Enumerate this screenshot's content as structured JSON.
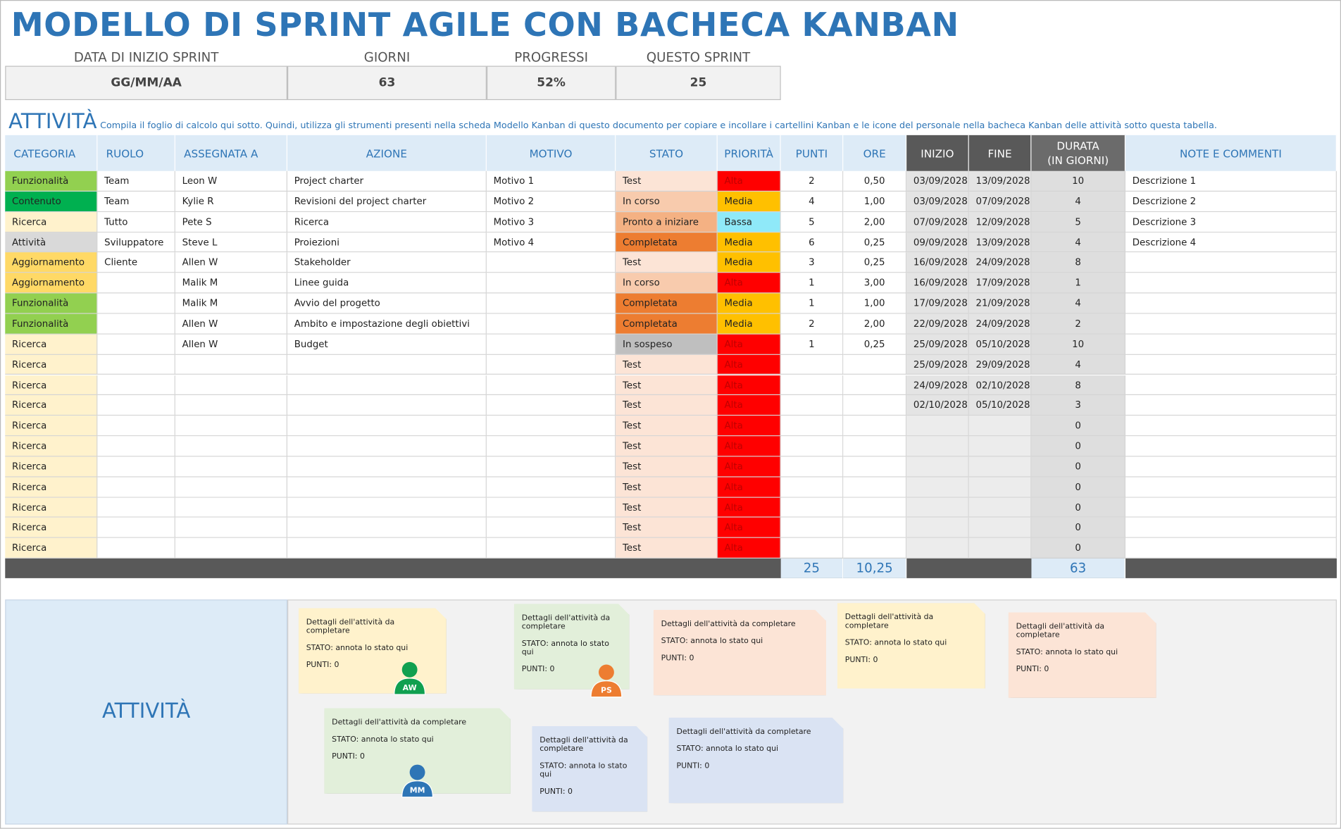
{
  "header": {
    "title": "MODELLO DI SPRINT AGILE CON BACHECA KANBAN"
  },
  "summary": {
    "labels": [
      "DATA DI INIZIO SPRINT",
      "GIORNI",
      "PROGRESSI",
      "QUESTO SPRINT"
    ],
    "values": [
      "GG/MM/AA",
      63,
      "52%",
      25
    ]
  },
  "activities": {
    "title": "ATTIVITÀ",
    "instructions": "Compila il foglio di calcolo qui sotto. Quindi, utilizza gli strumenti presenti nella scheda Modello Kanban di questo documento per copiare e incollare i cartellini Kanban e le icone del personale nella bacheca Kanban delle attività sotto questa tabella."
  },
  "table": {
    "headers": [
      "CATEGORIA",
      "RUOLO",
      "ASSEGNATA A",
      "AZIONE",
      "MOTIVO",
      "STATO",
      "PRIORITÀ",
      "PUNTI",
      "ORE",
      "INIZIO",
      "FINE",
      "DURATA\n(IN GIORNI)",
      "NOTE E COMMENTI"
    ],
    "rows": [
      [
        "Funzionalità",
        "Team",
        "Leon W",
        "Project charter",
        "Motivo 1",
        "Test",
        "Alta",
        2,
        "0,50",
        "03/09/2028",
        "13/09/2028",
        10,
        "Descrizione 1"
      ],
      [
        "Contenuto",
        "Team",
        "Kylie R",
        "Revisioni del project charter",
        "Motivo 2",
        "In corso",
        "Media",
        4,
        "1,00",
        "03/09/2028",
        "07/09/2028",
        4,
        "Descrizione 2"
      ],
      [
        "Ricerca",
        "Tutto",
        "Pete S",
        "Ricerca",
        "Motivo 3",
        "Pronto a iniziare",
        "Bassa",
        5,
        "2,00",
        "07/09/2028",
        "12/09/2028",
        5,
        "Descrizione 3"
      ],
      [
        "Attività",
        "Sviluppatore",
        "Steve L",
        "Proiezioni",
        "Motivo 4",
        "Completata",
        "Media",
        6,
        "0,25",
        "09/09/2028",
        "13/09/2028",
        4,
        "Descrizione 4"
      ],
      [
        "Aggiornamento",
        "Cliente",
        "Allen W",
        "Stakeholder",
        null,
        "Test",
        "Media",
        3,
        "0,25",
        "16/09/2028",
        "24/09/2028",
        8,
        null
      ],
      [
        "Aggiornamento",
        null,
        "Malik M",
        "Linee guida",
        null,
        "In corso",
        "Alta",
        1,
        "3,00",
        "16/09/2028",
        "17/09/2028",
        1,
        null
      ],
      [
        "Funzionalità",
        null,
        "Malik M",
        "Avvio del progetto",
        null,
        "Completata",
        "Media",
        1,
        "1,00",
        "17/09/2028",
        "21/09/2028",
        4,
        null
      ],
      [
        "Funzionalità",
        null,
        "Allen W",
        "Ambito e impostazione degli obiettivi",
        null,
        "Completata",
        "Media",
        2,
        "2,00",
        "22/09/2028",
        "24/09/2028",
        2,
        null
      ],
      [
        "Ricerca",
        null,
        "Allen W",
        "Budget",
        null,
        "In sospeso",
        "Alta",
        1,
        "0,25",
        "25/09/2028",
        "05/10/2028",
        10,
        null
      ],
      [
        "Ricerca",
        null,
        null,
        null,
        null,
        "Test",
        "Alta",
        null,
        null,
        "25/09/2028",
        "29/09/2028",
        4,
        null
      ],
      [
        "Ricerca",
        null,
        null,
        null,
        null,
        "Test",
        "Alta",
        null,
        null,
        "24/09/2028",
        "02/10/2028",
        8,
        null
      ],
      [
        "Ricerca",
        null,
        null,
        null,
        null,
        "Test",
        "Alta",
        null,
        null,
        "02/10/2028",
        "05/10/2028",
        3,
        null
      ],
      [
        "Ricerca",
        null,
        null,
        null,
        null,
        "Test",
        "Alta",
        null,
        null,
        null,
        null,
        0,
        null
      ],
      [
        "Ricerca",
        null,
        null,
        null,
        null,
        "Test",
        "Alta",
        null,
        null,
        null,
        null,
        0,
        null
      ],
      [
        "Ricerca",
        null,
        null,
        null,
        null,
        "Test",
        "Alta",
        null,
        null,
        null,
        null,
        0,
        null
      ],
      [
        "Ricerca",
        null,
        null,
        null,
        null,
        "Test",
        "Alta",
        null,
        null,
        null,
        null,
        0,
        null
      ],
      [
        "Ricerca",
        null,
        null,
        null,
        null,
        "Test",
        "Alta",
        null,
        null,
        null,
        null,
        0,
        null
      ],
      [
        "Ricerca",
        null,
        null,
        null,
        null,
        "Test",
        "Alta",
        null,
        null,
        null,
        null,
        0,
        null
      ],
      [
        "Ricerca",
        null,
        null,
        null,
        null,
        "Test",
        "Alta",
        null,
        null,
        null,
        null,
        0,
        null
      ]
    ],
    "totals": {
      "punti": 25,
      "ore": "10,25",
      "durata": 63
    },
    "category_colors": {
      "Funzionalità": "#92d050",
      "Contenuto": "#00b050",
      "Ricerca": "#fff2cc",
      "Attività": "#d9d9d9",
      "Aggiornamento": "#ffd966"
    },
    "status_colors": {
      "Test": "#fce4d6",
      "In corso": "#f8cbad",
      "Pronto a iniziare": "#f4b183",
      "Completata": "#ed7d31",
      "In sospeso": "#bfbfbf"
    },
    "priority_colors": {
      "Alta": "#ff0000",
      "Media": "#ffc000",
      "Bassa": "#8fe9f9"
    }
  },
  "board": {
    "title": "ATTIVITÀ",
    "cards": [
      {
        "details": "Dettagli dell'attività da completare",
        "status": "STATO: annota lo stato qui",
        "points": "PUNTI: 0",
        "color": "#fff2cc",
        "avatar": "AW",
        "avatar_color": "#10a050"
      },
      {
        "details": "Dettagli dell'attività da completare",
        "status": "STATO: annota lo stato qui",
        "points": "PUNTI: 0",
        "color": "#e2efda",
        "avatar": "PS",
        "avatar_color": "#ed7d31"
      },
      {
        "details": "Dettagli dell'attività da completare",
        "status": "STATO: annota lo stato qui",
        "points": "PUNTI: 0",
        "color": "#fce4d6"
      },
      {
        "details": "Dettagli dell'attività da completare",
        "status": "STATO: annota lo stato qui",
        "points": "PUNTI: 0",
        "color": "#fff2cc"
      },
      {
        "details": "Dettagli dell'attività da completare",
        "status": "STATO: annota lo stato qui",
        "points": "PUNTI: 0",
        "color": "#fce4d6"
      },
      {
        "details": "Dettagli dell'attività da completare",
        "status": "STATO: annota lo stato qui",
        "points": "PUNTI: 0",
        "color": "#e2efda",
        "avatar": "MM",
        "avatar_color": "#2e75b6"
      },
      {
        "details": "Dettagli dell'attività da completare",
        "status": "STATO: annota lo stato qui",
        "points": "PUNTI: 0",
        "color": "#dae3f3"
      },
      {
        "details": "Dettagli dell'attività da completare",
        "status": "STATO: annota lo stato qui",
        "points": "PUNTI: 0",
        "color": "#dae3f3"
      }
    ]
  }
}
